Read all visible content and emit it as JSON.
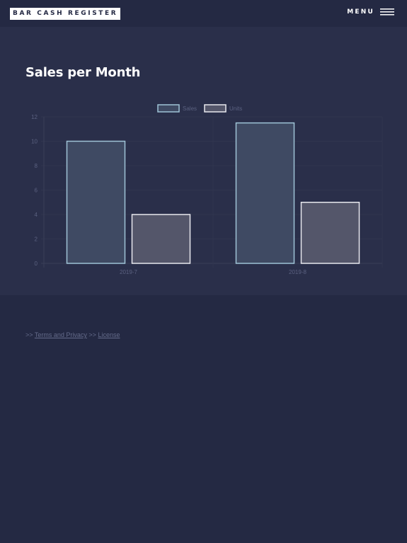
{
  "header": {
    "logo_text": "BAR CASH REGISTER",
    "menu_label": "MENU"
  },
  "main": {
    "title": "Sales per Month"
  },
  "footer": {
    "sep1": ">>",
    "terms_label": "Terms and Privacy",
    "sep2": ">>",
    "license_label": "License"
  },
  "colors": {
    "page_bg": "#242943",
    "section_bg": "#2a2f4a",
    "sales_fill": "#3f4a63",
    "sales_stroke": "#9fc3d6",
    "units_fill": "#54566a",
    "units_stroke": "#e8e8ee"
  },
  "chart_data": {
    "type": "bar",
    "categories": [
      "2019-7",
      "2019-8"
    ],
    "series": [
      {
        "name": "Sales",
        "values": [
          10,
          11.5
        ]
      },
      {
        "name": "Units",
        "values": [
          4,
          5
        ]
      }
    ],
    "ylim": [
      0,
      12
    ],
    "yticks": [
      0,
      2,
      4,
      6,
      8,
      10,
      12
    ],
    "legend": "top-center",
    "grid": true,
    "title": "",
    "xlabel": "",
    "ylabel": ""
  }
}
